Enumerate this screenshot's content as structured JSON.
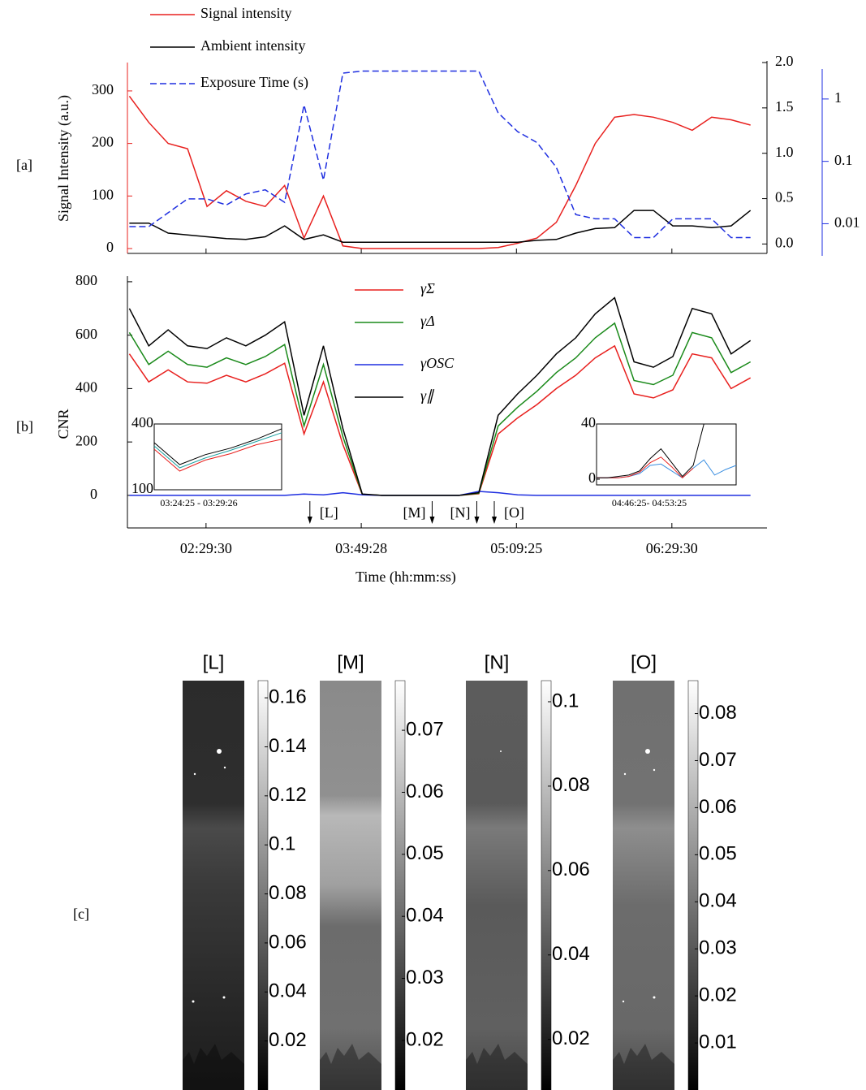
{
  "panel_labels": [
    "[a]",
    "[b]",
    "[c]"
  ],
  "chart_data": [
    {
      "type": "line",
      "x": [
        "01:50:00",
        "02:00:00",
        "02:10:00",
        "02:20:00",
        "02:30:00",
        "02:40:00",
        "02:50:00",
        "03:00:00",
        "03:10:00",
        "03:20:00",
        "03:30:00",
        "03:40:00",
        "03:50:00",
        "04:00:00",
        "04:10:00",
        "04:20:00",
        "04:30:00",
        "04:40:00",
        "04:50:00",
        "05:00:00",
        "05:10:00",
        "05:20:00",
        "05:30:00",
        "05:40:00",
        "05:50:00",
        "06:00:00",
        "06:10:00",
        "06:20:00",
        "06:30:00",
        "06:40:00",
        "06:50:00",
        "07:00:00",
        "07:10:00"
      ],
      "xlim": [
        "01:49:00",
        "07:18:30"
      ],
      "ylabel": "Signal Intensity (a.u.)",
      "ylim": [
        0,
        354
      ],
      "yticks": [
        0,
        100,
        200,
        300
      ],
      "y2lim": [
        -0.05,
        2.0
      ],
      "y2ticks": [
        {
          "value": 0,
          "label": "0.0"
        },
        0.5,
        {
          "value": 1,
          "label": "1.0"
        },
        1.5,
        {
          "value": 2,
          "label": "2.0"
        }
      ],
      "y3lim": [
        0.004,
        3.84
      ],
      "y3log": true,
      "y3ticks": [
        0.01,
        0.1,
        1
      ],
      "series": [
        {
          "name": "Signal intensity",
          "color": "#e8201e",
          "axis": "y",
          "values": [
            290,
            240,
            200,
            190,
            80,
            110,
            90,
            80,
            120,
            20,
            100,
            5,
            0,
            0,
            0,
            0,
            0,
            0,
            0,
            2,
            10,
            20,
            50,
            120,
            200,
            250,
            255,
            250,
            240,
            225,
            250,
            245,
            235
          ]
        },
        {
          "name": "Ambient intensity",
          "color": "#000000",
          "axis": "y2",
          "values": [
            0.23,
            0.23,
            0.12,
            0.1,
            0.08,
            0.06,
            0.05,
            0.08,
            0.2,
            0.05,
            0.1,
            0.02,
            0.02,
            0.02,
            0.02,
            0.02,
            0.02,
            0.02,
            0.02,
            0.02,
            0.02,
            0.04,
            0.05,
            0.12,
            0.17,
            0.18,
            0.37,
            0.37,
            0.2,
            0.2,
            0.18,
            0.2,
            0.37
          ]
        },
        {
          "name": "Exposure Time (s)",
          "color": "#1f2fe0",
          "axis": "y3",
          "dashed": true,
          "values": [
            0.009,
            0.009,
            0.015,
            0.025,
            0.025,
            0.02,
            0.03,
            0.035,
            0.022,
            0.8,
            0.05,
            2.6,
            2.8,
            2.8,
            2.8,
            2.8,
            2.8,
            2.8,
            2.8,
            0.6,
            0.3,
            0.2,
            0.08,
            0.014,
            0.012,
            0.012,
            0.006,
            0.006,
            0.012,
            0.012,
            0.012,
            0.006,
            0.006
          ]
        }
      ]
    },
    {
      "type": "line",
      "x": [
        "01:50:00",
        "02:00:00",
        "02:10:00",
        "02:20:00",
        "02:30:00",
        "02:40:00",
        "02:50:00",
        "03:00:00",
        "03:10:00",
        "03:20:00",
        "03:30:00",
        "03:40:00",
        "03:50:00",
        "04:00:00",
        "04:10:00",
        "04:20:00",
        "04:30:00",
        "04:40:00",
        "04:50:00",
        "05:00:00",
        "05:10:00",
        "05:20:00",
        "05:30:00",
        "05:40:00",
        "05:50:00",
        "06:00:00",
        "06:10:00",
        "06:20:00",
        "06:30:00",
        "06:40:00",
        "06:50:00",
        "07:00:00",
        "07:10:00"
      ],
      "xlim": [
        "01:49:00",
        "07:18:30"
      ],
      "xticks": [
        "02:29:30",
        "03:49:28",
        "05:09:25",
        "06:29:30"
      ],
      "xlabel": "Time (hh:mm:ss)",
      "ylabel": "CNR",
      "ylim": [
        -122,
        821
      ],
      "yticks": [
        0,
        200,
        400,
        600,
        800
      ],
      "series": [
        {
          "name": "γΣ",
          "color": "#e8201e",
          "values": [
            530,
            425,
            470,
            425,
            420,
            450,
            425,
            455,
            495,
            230,
            425,
            190,
            3,
            0,
            0,
            0,
            0,
            0,
            6,
            230,
            290,
            340,
            400,
            450,
            515,
            560,
            380,
            365,
            395,
            530,
            515,
            400,
            440
          ]
        },
        {
          "name": "γΔ",
          "color": "#1a8a1a",
          "values": [
            610,
            490,
            540,
            490,
            480,
            515,
            490,
            520,
            565,
            260,
            490,
            220,
            4,
            0,
            0,
            0,
            0,
            0,
            8,
            260,
            330,
            390,
            460,
            515,
            590,
            645,
            430,
            415,
            450,
            610,
            590,
            460,
            500
          ]
        },
        {
          "name": "γOSC",
          "color": "#1f2fe0",
          "values": [
            0,
            0,
            0,
            0,
            0,
            0,
            0,
            0,
            0,
            5,
            2,
            10,
            2,
            0,
            0,
            0,
            0,
            0,
            15,
            10,
            2,
            0,
            0,
            0,
            0,
            0,
            0,
            0,
            0,
            0,
            0,
            0,
            0
          ]
        },
        {
          "name": "γ∥",
          "color": "#000000",
          "values": [
            700,
            560,
            620,
            560,
            550,
            590,
            560,
            600,
            650,
            300,
            560,
            250,
            5,
            0,
            0,
            0,
            0,
            0,
            10,
            300,
            380,
            450,
            530,
            590,
            680,
            740,
            500,
            480,
            520,
            700,
            680,
            530,
            580
          ]
        }
      ],
      "annotations": [
        {
          "text": "[L]",
          "x": "03:23:00"
        },
        {
          "text": "[M]",
          "x": "04:26:00"
        },
        {
          "text": "[N]",
          "x": "04:49:00"
        },
        {
          "text": "[O]",
          "x": "04:58:00"
        }
      ]
    },
    {
      "type": "line",
      "xlabel": "03:24:25 - 03:29:26",
      "categories": [
        null,
        null,
        null,
        null,
        null,
        null
      ],
      "ylim": [
        100,
        400
      ],
      "yticks": [
        100,
        400
      ],
      "series": [
        {
          "color": "#000000",
          "values": [
            315,
            215,
            260,
            290,
            330,
            378
          ]
        },
        {
          "color": "#1aa0a0",
          "values": [
            300,
            200,
            245,
            280,
            320,
            360
          ]
        },
        {
          "color": "#e8201e",
          "values": [
            285,
            185,
            235,
            265,
            305,
            330
          ]
        }
      ]
    },
    {
      "type": "line",
      "xlabel": "04:46:25- 04:53:25",
      "categories": [
        null,
        null,
        null,
        null,
        null,
        null,
        null,
        null,
        null,
        null,
        null,
        null,
        null,
        null
      ],
      "ylim": [
        -4.1,
        40
      ],
      "yticks": [
        0,
        40
      ],
      "series": [
        {
          "color": "#3a8ee0",
          "values": [
            1,
            1,
            1,
            2,
            4,
            10,
            11,
            6,
            1,
            8,
            14,
            3,
            7,
            10
          ]
        },
        {
          "color": "#e8201e",
          "values": [
            1,
            1,
            1,
            2,
            5,
            12,
            16,
            9,
            1,
            8,
            null,
            null,
            null,
            null
          ]
        },
        {
          "color": "#000000",
          "values": [
            1,
            1,
            2,
            3,
            6,
            15,
            22,
            12,
            2,
            10,
            40,
            null,
            null,
            null
          ]
        }
      ]
    }
  ],
  "image_panels": [
    {
      "title": "[L]",
      "clim": [
        0,
        0.167
      ],
      "cticks": [
        0.02,
        0.04,
        0.06,
        0.08,
        0.1,
        0.12,
        0.14,
        0.16
      ]
    },
    {
      "title": "[M]",
      "clim": [
        0.012,
        0.078
      ],
      "cticks": [
        0.02,
        0.03,
        0.04,
        0.05,
        0.06,
        0.07
      ]
    },
    {
      "title": "[N]",
      "clim": [
        0.008,
        0.105
      ],
      "cticks": [
        0.02,
        0.04,
        0.06,
        0.08,
        0.1
      ]
    },
    {
      "title": "[O]",
      "clim": [
        0,
        0.087
      ],
      "cticks": [
        0.01,
        0.02,
        0.03,
        0.04,
        0.05,
        0.06,
        0.07,
        0.08
      ]
    }
  ]
}
